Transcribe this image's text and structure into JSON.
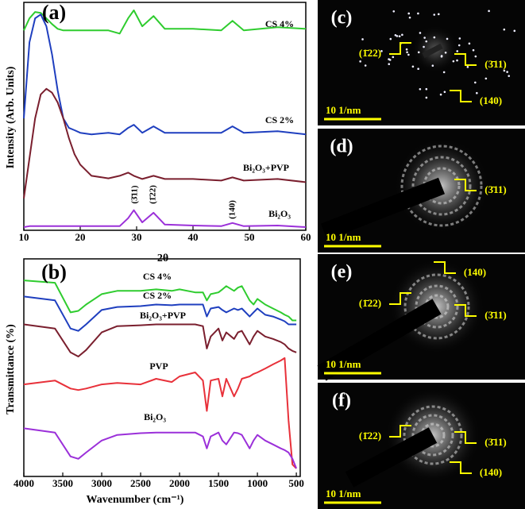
{
  "chart_data": [
    {
      "type": "line",
      "label": "(a)",
      "xlabel": "2θ",
      "ylabel": "Intensity (Arb. Units)",
      "x": [
        10,
        11,
        12,
        13,
        14,
        15,
        16,
        17,
        18,
        19,
        20,
        22,
        25,
        27,
        28.5,
        29.5,
        31,
        33,
        35,
        40,
        45,
        47,
        49,
        55,
        60
      ],
      "xlim": [
        10,
        60
      ],
      "xticks": [
        10,
        20,
        30,
        40,
        50,
        60
      ],
      "ylim": [
        0,
        100
      ],
      "series": [
        {
          "name": "CS 4%",
          "color": "#2fcc2f",
          "values": [
            87.7,
            93.0,
            95.8,
            95.4,
            93.0,
            90.5,
            88.4,
            87.7,
            87.7,
            87.7,
            87.7,
            87.7,
            87.7,
            86.3,
            93.0,
            96.5,
            89.5,
            94.0,
            88.4,
            88.4,
            87.7,
            91.9,
            87.7,
            89.1,
            88.4
          ]
        },
        {
          "name": "CS 2%",
          "color": "#1f3fbf",
          "values": [
            49.1,
            82.5,
            93.0,
            94.7,
            89.5,
            77.2,
            61.4,
            49.1,
            44.9,
            43.9,
            42.8,
            42.1,
            42.8,
            42.1,
            44.9,
            46.3,
            42.8,
            45.6,
            42.8,
            42.8,
            42.8,
            45.6,
            42.8,
            43.5,
            42.1
          ]
        },
        {
          "name": "Bi₂O₃+PVP",
          "color": "#7a1f2e",
          "values": [
            14.0,
            31.6,
            49.1,
            59.6,
            62.1,
            60.4,
            56.1,
            49.1,
            40.4,
            33.3,
            28.8,
            23.9,
            22.8,
            23.9,
            25.3,
            23.9,
            22.5,
            23.9,
            22.5,
            22.5,
            21.8,
            23.2,
            21.8,
            22.5,
            21.1
          ]
        },
        {
          "name": "Bi₂O₃",
          "color": "#9b30d9",
          "values": [
            1.4,
            1.8,
            1.8,
            1.8,
            1.8,
            1.8,
            1.8,
            1.8,
            1.8,
            1.8,
            1.8,
            1.8,
            1.8,
            1.8,
            5.3,
            8.8,
            3.5,
            7.7,
            2.5,
            2.1,
            1.8,
            3.2,
            1.8,
            2.1,
            1.4
          ]
        }
      ],
      "annotations": [
        "(3̄11)",
        "(1̄22)",
        "(140)"
      ]
    },
    {
      "type": "line",
      "label": "(b)",
      "xlabel": "Wavenumber (cm⁻¹)",
      "ylabel": "Transmittance (%)",
      "x": [
        4000,
        3600,
        3400,
        3300,
        3200,
        3000,
        2800,
        2500,
        2300,
        2100,
        2000,
        1800,
        1700,
        1650,
        1600,
        1500,
        1450,
        1400,
        1300,
        1250,
        1200,
        1100,
        1050,
        1000,
        900,
        800,
        700,
        650,
        600,
        550,
        500
      ],
      "xlim": [
        4000,
        450
      ],
      "xticks": [
        4000,
        3500,
        3000,
        2500,
        2000,
        1500,
        1000,
        500
      ],
      "ylim": [
        0,
        100
      ],
      "series": [
        {
          "name": "CS 4%",
          "color": "#2fcc2f",
          "values": [
            90.1,
            89.0,
            75.4,
            76.1,
            79.0,
            83.8,
            85.3,
            85.3,
            86.0,
            85.3,
            86.0,
            84.6,
            84.6,
            80.9,
            83.8,
            84.6,
            86.0,
            87.5,
            85.3,
            86.8,
            87.5,
            80.9,
            79.0,
            81.6,
            79.0,
            77.2,
            75.4,
            74.3,
            73.5,
            71.7,
            71.7
          ]
        },
        {
          "name": "CS 2%",
          "color": "#1f3fbf",
          "values": [
            82.7,
            80.9,
            68.0,
            66.9,
            69.9,
            76.5,
            77.9,
            78.3,
            79.0,
            78.7,
            79.0,
            79.0,
            79.0,
            73.5,
            77.2,
            77.9,
            76.5,
            75.4,
            77.2,
            76.5,
            77.2,
            73.5,
            75.4,
            77.2,
            74.3,
            73.5,
            72.1,
            71.3,
            69.9,
            69.9,
            69.9
          ]
        },
        {
          "name": "Bi₂O₃+PVP",
          "color": "#7a1f2e",
          "values": [
            69.9,
            68.0,
            57.0,
            55.1,
            58.1,
            66.2,
            69.1,
            69.5,
            69.9,
            69.9,
            69.9,
            69.9,
            69.1,
            58.8,
            64.3,
            68.0,
            62.5,
            66.2,
            63.2,
            66.2,
            66.9,
            60.7,
            64.3,
            66.9,
            64.3,
            63.2,
            61.8,
            60.7,
            58.8,
            57.7,
            57.0
          ]
        },
        {
          "name": "PVP",
          "color": "#e8313a",
          "values": [
            42.3,
            44.1,
            40.4,
            39.7,
            40.4,
            42.3,
            43.0,
            42.3,
            44.9,
            43.4,
            46.0,
            47.8,
            44.1,
            30.1,
            44.1,
            44.9,
            36.8,
            44.9,
            36.8,
            40.4,
            44.9,
            46.0,
            47.1,
            47.8,
            49.6,
            51.5,
            53.3,
            54.4,
            25.7,
            5.5,
            3.7
          ]
        },
        {
          "name": "Bi₂O₃",
          "color": "#9b30d9",
          "values": [
            22.1,
            20.2,
            9.2,
            8.1,
            11.0,
            16.5,
            19.1,
            19.9,
            20.2,
            20.2,
            20.2,
            20.2,
            18.4,
            12.9,
            18.4,
            20.2,
            16.5,
            14.7,
            20.2,
            19.9,
            19.1,
            12.9,
            16.5,
            19.1,
            16.5,
            14.7,
            12.9,
            12.1,
            11.0,
            8.1,
            3.7
          ]
        }
      ]
    }
  ],
  "images": [
    {
      "label": "(c)",
      "scale": "10 1/nm",
      "planes": [
        "(1̄22)",
        "(3̄11)",
        "(140)"
      ]
    },
    {
      "label": "(d)",
      "scale": "10 1/nm",
      "planes": [
        "(3̄11)"
      ]
    },
    {
      "label": "(e)",
      "scale": "10 1/nm",
      "planes": [
        "(140)",
        "(1̄22)",
        "(3̄11)"
      ]
    },
    {
      "label": "(f)",
      "scale": "10 1/nm",
      "planes": [
        "(1̄22)",
        "(3̄11)",
        "(140)"
      ]
    }
  ]
}
